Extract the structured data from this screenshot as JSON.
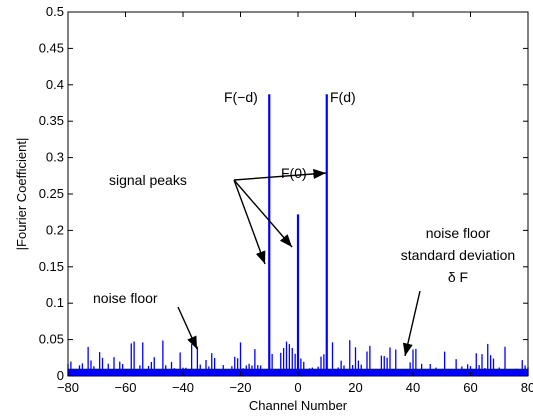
{
  "chart_data": {
    "type": "bar",
    "xlabel": "Channel Number",
    "ylabel": "|Fourier Coefficient|",
    "xlim": [
      -80,
      80
    ],
    "ylim": [
      0,
      0.5
    ],
    "xticks": [
      -80,
      -60,
      -40,
      -20,
      0,
      20,
      40,
      60,
      80
    ],
    "yticks": [
      0,
      0.05,
      0.1,
      0.15,
      0.2,
      0.25,
      0.3,
      0.35,
      0.4,
      0.45,
      0.5
    ],
    "grid": false,
    "bar_color": "#0000ff",
    "axis_color": "#000000",
    "peaks": [
      {
        "x": -10,
        "y": 0.387,
        "label": "F(−d)"
      },
      {
        "x": 0,
        "y": 0.222,
        "label": "F(0)"
      },
      {
        "x": 10,
        "y": 0.387,
        "label": "F(d)"
      }
    ],
    "noise_baseline": 0.01,
    "annotations": {
      "signal_peaks": "signal peaks",
      "noise_floor": "noise floor",
      "std_line1": "noise floor",
      "std_line2": "standard deviation",
      "std_line3": "δ F"
    }
  }
}
